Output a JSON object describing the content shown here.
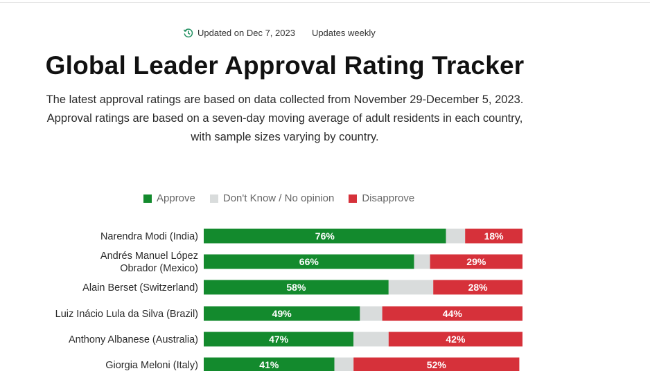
{
  "meta": {
    "updated": "Updated on Dec 7, 2023",
    "frequency": "Updates weekly",
    "clock_icon": "history-clock-icon"
  },
  "title": "Global Leader Approval Rating Tracker",
  "description": "The latest approval ratings are based on data collected from November 29-December 5, 2023. Approval ratings are based on a seven-day moving average of adult residents in each country, with sample sizes varying by country.",
  "colors": {
    "approve": "#138a2d",
    "dont_know": "#d9dcdc",
    "disapprove": "#d6313a",
    "accent": "#1f8f5f"
  },
  "chart_data": {
    "type": "bar",
    "stacked": true,
    "orientation": "horizontal",
    "legend_position": "top",
    "legend": [
      "Approve",
      "Don't Know / No opinion",
      "Disapprove"
    ],
    "categories": [
      [
        "Narendra Modi (India)"
      ],
      [
        "Andrés Manuel López",
        "Obrador (Mexico)"
      ],
      [
        "Alain Berset (Switzerland)"
      ],
      [
        "Luiz Inácio Lula da Silva (Brazil)"
      ],
      [
        "Anthony Albanese (Australia)"
      ],
      [
        "Giorgia Meloni (Italy)"
      ]
    ],
    "series": [
      {
        "name": "Approve",
        "values": [
          76,
          66,
          58,
          49,
          47,
          41
        ]
      },
      {
        "name": "Don't Know / No opinion",
        "values": [
          6,
          5,
          14,
          7,
          11,
          6
        ]
      },
      {
        "name": "Disapprove",
        "values": [
          18,
          29,
          28,
          44,
          42,
          52
        ]
      }
    ],
    "value_labels": {
      "approve": [
        "76%",
        "66%",
        "58%",
        "49%",
        "47%",
        "41%"
      ],
      "disapprove": [
        "18%",
        "29%",
        "28%",
        "44%",
        "42%",
        "52%"
      ]
    },
    "xlim": [
      0,
      100
    ]
  }
}
